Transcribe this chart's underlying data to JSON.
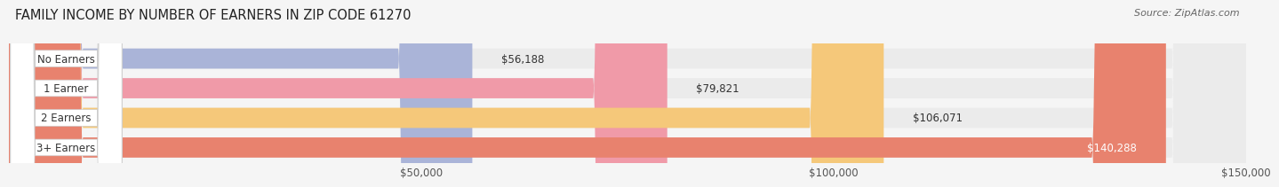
{
  "title": "FAMILY INCOME BY NUMBER OF EARNERS IN ZIP CODE 61270",
  "source": "Source: ZipAtlas.com",
  "categories": [
    "No Earners",
    "1 Earner",
    "2 Earners",
    "3+ Earners"
  ],
  "values": [
    56188,
    79821,
    106071,
    140288
  ],
  "value_labels": [
    "$56,188",
    "$79,821",
    "$106,071",
    "$140,288"
  ],
  "bar_colors": [
    "#aab4d8",
    "#f09aa8",
    "#f5c87a",
    "#e8826e"
  ],
  "bar_bg_color": "#ebebeb",
  "background_color": "#f5f5f5",
  "xlim": [
    0,
    150000
  ],
  "xmin": 0,
  "xmax": 150000,
  "xticks": [
    50000,
    100000,
    150000
  ],
  "xtick_labels": [
    "$50,000",
    "$100,000",
    "$150,000"
  ],
  "title_fontsize": 10.5,
  "label_fontsize": 8.5,
  "value_fontsize": 8.5,
  "source_fontsize": 8.0,
  "bar_height": 0.68,
  "label_box_color": "#ffffff",
  "label_text_color": "#333333",
  "value_text_color_outside": "#333333",
  "value_text_color_inside": "#ffffff"
}
